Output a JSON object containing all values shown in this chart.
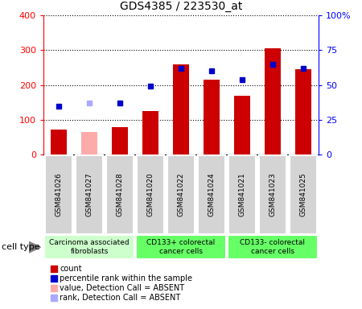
{
  "title": "GDS4385 / 223530_at",
  "samples": [
    "GSM841026",
    "GSM841027",
    "GSM841028",
    "GSM841020",
    "GSM841022",
    "GSM841024",
    "GSM841021",
    "GSM841023",
    "GSM841025"
  ],
  "bar_values": [
    72,
    65,
    78,
    125,
    260,
    215,
    170,
    305,
    245
  ],
  "bar_colors": [
    "#cc0000",
    "#ffaaaa",
    "#cc0000",
    "#cc0000",
    "#cc0000",
    "#cc0000",
    "#cc0000",
    "#cc0000",
    "#cc0000"
  ],
  "rank_values": [
    35,
    37,
    37,
    49,
    62,
    60,
    54,
    65,
    62
  ],
  "rank_colors": [
    "#0000cc",
    "#aaaaff",
    "#0000cc",
    "#0000cc",
    "#0000cc",
    "#0000cc",
    "#0000cc",
    "#0000cc",
    "#0000cc"
  ],
  "group_labels": [
    "Carcinoma associated\nfibroblasts",
    "CD133+ colorectal\ncancer cells",
    "CD133- colorectal\ncancer cells"
  ],
  "group_ranges": [
    [
      0,
      3
    ],
    [
      3,
      6
    ],
    [
      6,
      9
    ]
  ],
  "group_colors": [
    "#ccffcc",
    "#66ff66",
    "#66ff66"
  ],
  "ylim_left": [
    0,
    400
  ],
  "ylim_right": [
    0,
    100
  ],
  "yticks_left": [
    0,
    100,
    200,
    300,
    400
  ],
  "ytick_labels_left": [
    "0",
    "100",
    "200",
    "300",
    "400"
  ],
  "yticks_right": [
    0,
    25,
    50,
    75,
    100
  ],
  "ytick_labels_right": [
    "0",
    "25",
    "50",
    "75",
    "100%"
  ],
  "legend_labels": [
    "count",
    "percentile rank within the sample",
    "value, Detection Call = ABSENT",
    "rank, Detection Call = ABSENT"
  ],
  "legend_colors": [
    "#cc0000",
    "#0000cc",
    "#ffaaaa",
    "#aaaaff"
  ]
}
